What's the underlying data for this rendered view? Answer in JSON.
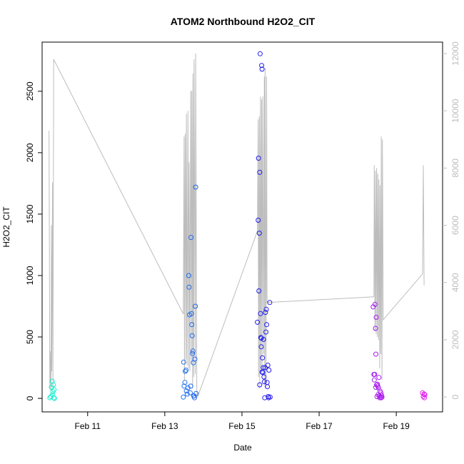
{
  "chart_data": {
    "type": "scatter",
    "title": "ATOM2 Northbound H2O2_CIT",
    "xlabel": "Date",
    "ylabel": "H2O2_CIT",
    "x_ticks": [
      {
        "day": 11,
        "label": "Feb 11"
      },
      {
        "day": 13,
        "label": "Feb 13"
      },
      {
        "day": 15,
        "label": "Feb 15"
      },
      {
        "day": 17,
        "label": "Feb 17"
      },
      {
        "day": 19,
        "label": "Feb 19"
      }
    ],
    "xlim": [
      9.82,
      20.2
    ],
    "ylim": [
      -110,
      2900
    ],
    "y_ticks": [
      0,
      500,
      1000,
      1500,
      2000,
      2500
    ],
    "y2lim": [
      -520,
      12400
    ],
    "y2_ticks": [
      0,
      2000,
      4000,
      6000,
      8000,
      10000,
      12000
    ],
    "colors": {
      "axis": "#000000",
      "secondary": "#bdbdbd",
      "palette_start": "#22e8c8",
      "palette_end": "#e43cf0"
    },
    "points": [
      [
        10.02,
        5
      ],
      [
        10.05,
        15
      ],
      [
        10.06,
        90
      ],
      [
        10.08,
        140
      ],
      [
        10.09,
        30
      ],
      [
        10.1,
        55
      ],
      [
        10.11,
        110
      ],
      [
        10.12,
        5
      ],
      [
        10.14,
        0
      ],
      [
        10.13,
        70
      ],
      [
        13.48,
        10
      ],
      [
        13.49,
        295
      ],
      [
        13.5,
        100
      ],
      [
        13.52,
        130
      ],
      [
        13.53,
        220
      ],
      [
        13.55,
        230
      ],
      [
        13.56,
        60
      ],
      [
        13.58,
        35
      ],
      [
        13.6,
        85
      ],
      [
        13.62,
        1000
      ],
      [
        13.63,
        905
      ],
      [
        13.64,
        680
      ],
      [
        13.66,
        45
      ],
      [
        13.67,
        100
      ],
      [
        13.68,
        1310
      ],
      [
        13.69,
        690
      ],
      [
        13.7,
        600
      ],
      [
        13.71,
        510
      ],
      [
        13.72,
        365
      ],
      [
        13.73,
        385
      ],
      [
        13.74,
        290
      ],
      [
        13.75,
        20
      ],
      [
        13.76,
        20
      ],
      [
        13.78,
        320
      ],
      [
        13.79,
        750
      ],
      [
        13.8,
        1720
      ],
      [
        13.81,
        40
      ],
      [
        13.77,
        5
      ],
      [
        15.4,
        620
      ],
      [
        15.42,
        1450
      ],
      [
        15.43,
        1955
      ],
      [
        15.44,
        875
      ],
      [
        15.45,
        1345
      ],
      [
        15.46,
        1840
      ],
      [
        15.47,
        2805
      ],
      [
        15.48,
        690
      ],
      [
        15.49,
        495
      ],
      [
        15.5,
        420
      ],
      [
        15.51,
        2710
      ],
      [
        15.52,
        2680
      ],
      [
        15.53,
        330
      ],
      [
        15.54,
        210
      ],
      [
        15.55,
        250
      ],
      [
        15.56,
        480
      ],
      [
        15.57,
        175
      ],
      [
        15.58,
        135
      ],
      [
        15.59,
        5
      ],
      [
        15.6,
        250
      ],
      [
        15.61,
        700
      ],
      [
        15.62,
        540
      ],
      [
        15.63,
        725
      ],
      [
        15.64,
        600
      ],
      [
        15.65,
        130
      ],
      [
        15.66,
        95
      ],
      [
        15.67,
        270
      ],
      [
        15.68,
        15
      ],
      [
        15.69,
        5
      ],
      [
        15.7,
        230
      ],
      [
        15.72,
        780
      ],
      [
        15.73,
        10
      ],
      [
        15.5,
        490
      ],
      [
        15.46,
        110
      ],
      [
        15.52,
        215
      ],
      [
        18.4,
        745
      ],
      [
        18.42,
        195
      ],
      [
        18.43,
        150
      ],
      [
        18.44,
        195
      ],
      [
        18.45,
        765
      ],
      [
        18.46,
        570
      ],
      [
        18.47,
        360
      ],
      [
        18.48,
        660
      ],
      [
        18.49,
        110
      ],
      [
        18.5,
        15
      ],
      [
        18.51,
        115
      ],
      [
        18.52,
        100
      ],
      [
        18.53,
        30
      ],
      [
        18.54,
        85
      ],
      [
        18.55,
        170
      ],
      [
        18.56,
        20
      ],
      [
        18.57,
        5
      ],
      [
        18.58,
        60
      ],
      [
        18.59,
        10
      ],
      [
        18.6,
        45
      ],
      [
        18.61,
        5
      ],
      [
        18.62,
        25
      ],
      [
        18.63,
        10
      ],
      [
        18.47,
        90
      ],
      [
        19.68,
        45
      ],
      [
        19.7,
        15
      ],
      [
        19.72,
        35
      ],
      [
        19.73,
        5
      ],
      [
        19.74,
        30
      ]
    ],
    "secondary_line": [
      [
        10.0,
        9300
      ],
      [
        10.02,
        300
      ],
      [
        10.03,
        1600
      ],
      [
        10.05,
        200
      ],
      [
        10.06,
        6000
      ],
      [
        10.07,
        900
      ],
      [
        10.09,
        7500
      ],
      [
        10.1,
        400
      ],
      [
        10.12,
        11800
      ],
      [
        13.48,
        2900
      ],
      [
        13.5,
        9100
      ],
      [
        13.51,
        600
      ],
      [
        13.53,
        9200
      ],
      [
        13.55,
        1300
      ],
      [
        13.56,
        9900
      ],
      [
        13.58,
        1100
      ],
      [
        13.6,
        10000
      ],
      [
        13.62,
        1000
      ],
      [
        13.63,
        8200
      ],
      [
        13.65,
        900
      ],
      [
        13.67,
        10700
      ],
      [
        13.69,
        1200
      ],
      [
        13.7,
        10700
      ],
      [
        13.72,
        300
      ],
      [
        13.73,
        11300
      ],
      [
        13.75,
        700
      ],
      [
        13.76,
        11800
      ],
      [
        13.79,
        800
      ],
      [
        13.8,
        12000
      ],
      [
        13.83,
        200
      ],
      [
        13.85,
        0
      ],
      [
        15.4,
        5800
      ],
      [
        15.42,
        9700
      ],
      [
        15.43,
        700
      ],
      [
        15.45,
        9800
      ],
      [
        15.46,
        300
      ],
      [
        15.48,
        10500
      ],
      [
        15.49,
        1000
      ],
      [
        15.51,
        10400
      ],
      [
        15.52,
        800
      ],
      [
        15.54,
        10500
      ],
      [
        15.56,
        1500
      ],
      [
        15.58,
        11200
      ],
      [
        15.59,
        400
      ],
      [
        15.6,
        11500
      ],
      [
        15.62,
        300
      ],
      [
        15.64,
        11200
      ],
      [
        15.65,
        3300
      ],
      [
        18.42,
        3500
      ],
      [
        18.43,
        8100
      ],
      [
        18.45,
        2300
      ],
      [
        18.46,
        7900
      ],
      [
        18.48,
        2200
      ],
      [
        18.49,
        8000
      ],
      [
        18.51,
        2100
      ],
      [
        18.52,
        7800
      ],
      [
        18.54,
        2000
      ],
      [
        18.55,
        7600
      ],
      [
        18.57,
        1000
      ],
      [
        18.58,
        7400
      ],
      [
        18.6,
        1500
      ],
      [
        18.61,
        9100
      ],
      [
        18.63,
        600
      ],
      [
        18.64,
        9000
      ],
      [
        18.66,
        2700
      ],
      [
        19.68,
        4300
      ],
      [
        19.7,
        8100
      ],
      [
        19.72,
        3900
      ]
    ]
  }
}
